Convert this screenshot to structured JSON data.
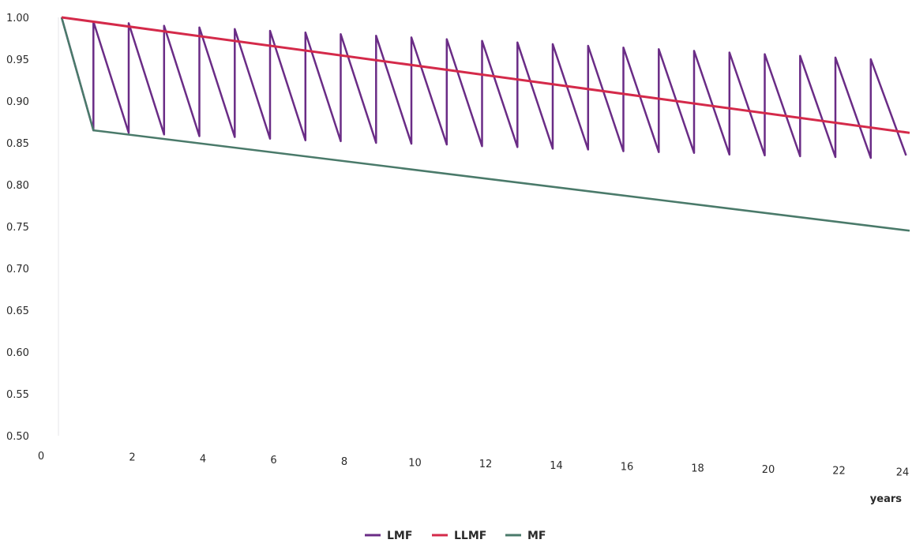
{
  "chart_data": {
    "type": "line",
    "title": "",
    "xlabel": "years",
    "ylabel": "",
    "xlim": [
      0,
      24
    ],
    "ylim": [
      0.5,
      1.0
    ],
    "x_ticks": [
      "0",
      "2",
      "4",
      "6",
      "8",
      "10",
      "12",
      "14",
      "16",
      "18",
      "20",
      "22",
      "24"
    ],
    "y_ticks": [
      "0.50",
      "0.55",
      "0.60",
      "0.65",
      "0.70",
      "0.75",
      "0.80",
      "0.85",
      "0.90",
      "0.95",
      "1.00"
    ],
    "grid": false,
    "legend_position": "bottom-center",
    "series": [
      {
        "name": "LMF",
        "color": "#6a2c86",
        "x": [
          0,
          0.9,
          0.9,
          1.9,
          1.9,
          2.9,
          2.9,
          3.9,
          3.9,
          4.9,
          4.9,
          5.9,
          5.9,
          6.9,
          6.9,
          7.9,
          7.9,
          8.9,
          8.9,
          9.9,
          9.9,
          10.9,
          10.9,
          11.9,
          11.9,
          12.9,
          12.9,
          13.9,
          13.9,
          14.9,
          14.9,
          15.9,
          15.9,
          16.9,
          16.9,
          17.9,
          17.9,
          18.9,
          18.9,
          19.9,
          19.9,
          20.9,
          20.9,
          21.9,
          21.9,
          22.9,
          22.9,
          23.9
        ],
        "y": [
          1.0,
          0.865,
          0.995,
          0.862,
          0.993,
          0.86,
          0.99,
          0.858,
          0.988,
          0.857,
          0.986,
          0.855,
          0.984,
          0.853,
          0.982,
          0.852,
          0.98,
          0.85,
          0.978,
          0.849,
          0.976,
          0.848,
          0.974,
          0.846,
          0.972,
          0.845,
          0.97,
          0.843,
          0.968,
          0.842,
          0.966,
          0.84,
          0.964,
          0.839,
          0.962,
          0.838,
          0.96,
          0.836,
          0.958,
          0.835,
          0.956,
          0.834,
          0.954,
          0.833,
          0.952,
          0.832,
          0.95,
          0.835
        ]
      },
      {
        "name": "LLMF",
        "color": "#d42a4a",
        "x": [
          0,
          24
        ],
        "y": [
          1.0,
          0.862
        ]
      },
      {
        "name": "MF",
        "color": "#4a7a6a",
        "x": [
          0,
          0.9,
          24
        ],
        "y": [
          1.0,
          0.865,
          0.745
        ]
      }
    ]
  }
}
